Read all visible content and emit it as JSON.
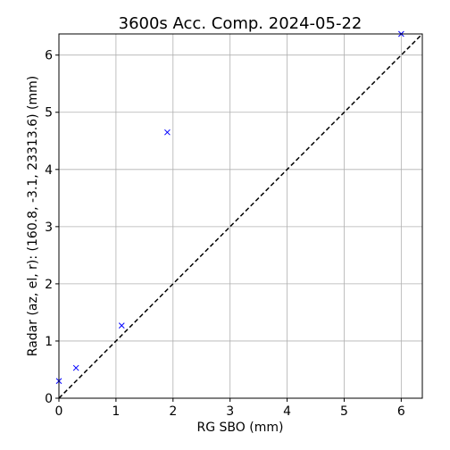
{
  "chart_data": {
    "type": "scatter",
    "title": "3600s Acc. Comp. 2024-05-22",
    "xlabel": "RG SBO (mm)",
    "ylabel": "Radar (az, el, r): (160.8, -3.1, 23313.6) (mm)",
    "xlim": [
      0,
      6.37
    ],
    "ylim": [
      0,
      6.37
    ],
    "xticks": [
      0,
      1,
      2,
      3,
      4,
      5,
      6
    ],
    "yticks": [
      0,
      1,
      2,
      3,
      4,
      5,
      6
    ],
    "grid": true,
    "series": [
      {
        "marker": "x",
        "color": "#0000ff",
        "points": [
          {
            "x": 0.0,
            "y": 0.3
          },
          {
            "x": 0.3,
            "y": 0.53
          },
          {
            "x": 1.1,
            "y": 1.27
          },
          {
            "x": 1.9,
            "y": 4.65
          },
          {
            "x": 6.0,
            "y": 6.37
          }
        ]
      }
    ],
    "reference_line": {
      "style": "dashed",
      "color": "#000000",
      "x": [
        0,
        6.37
      ],
      "y": [
        0,
        6.37
      ]
    }
  }
}
